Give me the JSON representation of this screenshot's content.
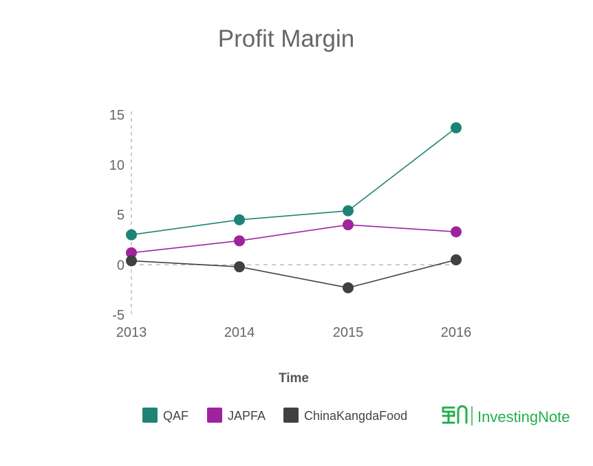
{
  "chart_data": {
    "type": "line",
    "title": "Profit Margin",
    "xlabel": "Time",
    "ylabel": "",
    "categories": [
      "2013",
      "2014",
      "2015",
      "2016"
    ],
    "yticks": [
      15,
      10,
      5,
      0,
      -5
    ],
    "ylim": [
      -5,
      15
    ],
    "grid": false,
    "legend_position": "bottom",
    "series": [
      {
        "name": "QAF",
        "color": "#1f8276",
        "values": [
          3.0,
          4.5,
          5.4,
          13.7
        ]
      },
      {
        "name": "JAPFA",
        "color": "#a0239e",
        "values": [
          1.2,
          2.4,
          4.0,
          3.3
        ]
      },
      {
        "name": "ChinaKangdaFood",
        "color": "#404040",
        "values": [
          0.4,
          -0.2,
          -2.3,
          0.5
        ]
      }
    ]
  },
  "brand": {
    "name": "InvestingNote",
    "icon": "investingnote-logo-icon",
    "color": "#22b04b"
  }
}
